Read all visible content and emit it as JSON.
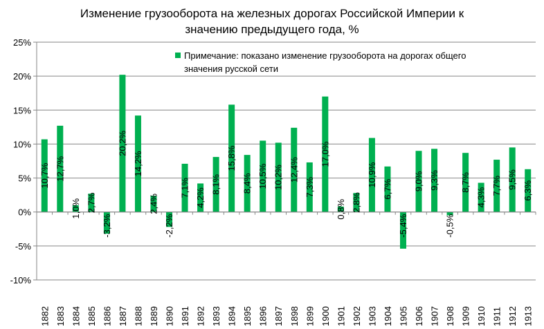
{
  "chart_data": {
    "type": "bar",
    "title": "Изменение грузооборота на железных дорогах Российской Империи к значению предыдущего года, %",
    "title_lines": [
      "Изменение грузооборота на железных дорогах Российской Империи к",
      "значению предыдущего года, %"
    ],
    "xlabel": "",
    "ylabel": "",
    "ylim": [
      -10,
      25
    ],
    "yticks": [
      -10,
      -5,
      0,
      5,
      10,
      15,
      20,
      25
    ],
    "ytick_labels": [
      "-10%",
      "-5%",
      "0%",
      "5%",
      "10%",
      "15%",
      "20%",
      "25%"
    ],
    "grid": true,
    "bar_color": "#00b050",
    "legend": {
      "position": "top-right",
      "lines": [
        "Примечание: показано изменение грузооборота на дорогах общего",
        "значения русской сети"
      ]
    },
    "categories": [
      "1882",
      "1883",
      "1884",
      "1885",
      "1886",
      "1887",
      "1888",
      "1889",
      "1890",
      "1891",
      "1892",
      "1893",
      "1894",
      "1895",
      "1896",
      "1897",
      "1898",
      "1899",
      "1900",
      "1901",
      "1902",
      "1903",
      "1904",
      "1905",
      "1906",
      "1907",
      "1908",
      "1909",
      "1910",
      "1911",
      "1912",
      "1913"
    ],
    "values": [
      10.7,
      12.7,
      1.0,
      2.7,
      -3.2,
      20.2,
      14.2,
      2.4,
      -2.2,
      7.1,
      4.2,
      8.1,
      15.8,
      8.4,
      10.5,
      10.2,
      12.4,
      7.3,
      17.0,
      0.8,
      2.8,
      10.9,
      6.7,
      -5.4,
      9.0,
      9.3,
      -0.5,
      8.7,
      4.3,
      7.7,
      9.5,
      6.3
    ],
    "data_labels": [
      "10,7%",
      "12,7%",
      "1,0%",
      "2,7%",
      "-3,2%",
      "20,2%",
      "14,2%",
      "2,4%",
      "-2,2%",
      "7,1%",
      "4,2%",
      "8,1%",
      "15,8%",
      "8,4%",
      "10,5%",
      "10,2%",
      "12,4%",
      "7,3%",
      "17,0%",
      "0,8%",
      "2,8%",
      "10,9%",
      "6,7%",
      "-5,4%",
      "9,0%",
      "9,3%",
      "-0,5%",
      "8,7%",
      "4,3%",
      "7,7%",
      "9,5%",
      "6,3%"
    ]
  }
}
